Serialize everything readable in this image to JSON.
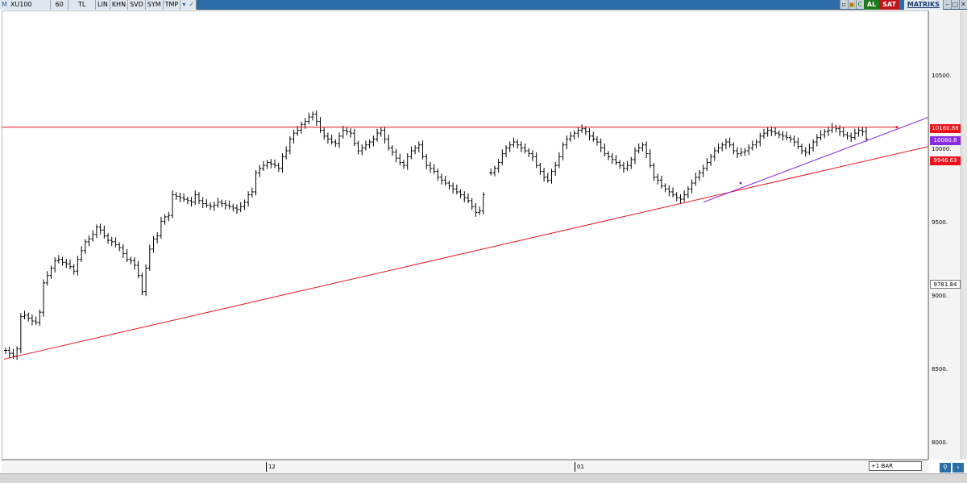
{
  "toolbar": {
    "symbol": "XU100",
    "period": "60",
    "currency": "TL",
    "buttons": [
      "LIN",
      "KHN",
      "SVD",
      "SYM",
      "TMP"
    ],
    "buy_label": "AL",
    "sell_label": "SAT",
    "brand": "MATRIKS",
    "colors": {
      "bar": "#2c6fa8",
      "buy": "#1f7a1f",
      "sell": "#c0151b"
    }
  },
  "scale": {
    "ticks": [
      "10500.",
      "10000.",
      "9500.",
      "9000.",
      "8500.",
      "8000."
    ],
    "resistance_label": "10160.88",
    "current_label": "10080.8",
    "trend_label": "9946.63",
    "cursor_label": "9781.84",
    "colors": {
      "resistance": "#e8131b",
      "current": "#8a2be2",
      "trend": "#e8131b"
    }
  },
  "xaxis": {
    "ticks": [
      "12",
      "01"
    ],
    "bar_shift": "+1 BAR"
  },
  "chart_data": {
    "type": "ohlc",
    "ylim": [
      7950,
      10950
    ],
    "resistance": 10160.88,
    "support_trend_start": 8580,
    "support_trend_end": 10030,
    "minor_trend_start": 9650,
    "minor_trend_end": 10230,
    "last_close": 10080.8,
    "closes": [
      8640,
      8620,
      8600,
      8650,
      8870,
      8880,
      8860,
      8840,
      8830,
      8900,
      9100,
      9150,
      9200,
      9250,
      9260,
      9240,
      9230,
      9210,
      9180,
      9260,
      9320,
      9380,
      9400,
      9430,
      9480,
      9460,
      9420,
      9390,
      9380,
      9360,
      9340,
      9300,
      9260,
      9250,
      9220,
      9150,
      9040,
      9200,
      9330,
      9400,
      9420,
      9520,
      9550,
      9560,
      9700,
      9690,
      9680,
      9670,
      9660,
      9650,
      9700,
      9660,
      9640,
      9630,
      9620,
      9630,
      9650,
      9640,
      9630,
      9620,
      9610,
      9600,
      9620,
      9650,
      9700,
      9720,
      9850,
      9880,
      9900,
      9920,
      9910,
      9900,
      9880,
      9960,
      10000,
      10080,
      10120,
      10140,
      10180,
      10200,
      10230,
      10250,
      10200,
      10140,
      10100,
      10080,
      10060,
      10050,
      10100,
      10140,
      10130,
      10120,
      10050,
      10000,
      10020,
      10040,
      10060,
      10080,
      10120,
      10140,
      10080,
      10020,
      9990,
      9950,
      9920,
      9900,
      9960,
      10000,
      10020,
      10040,
      9960,
      9900,
      9880,
      9860,
      9820,
      9800,
      9780,
      9760,
      9740,
      9720,
      9700,
      9680,
      9660,
      9620,
      9580,
      9590,
      9700,
      null,
      9850,
      9880,
      9920,
      9980,
      10020,
      10040,
      10060,
      10040,
      10020,
      10000,
      9980,
      9960,
      9900,
      9860,
      9820,
      9800,
      9860,
      9900,
      9960,
      10040,
      10080,
      10100,
      10120,
      10140,
      10150,
      10130,
      10100,
      10080,
      10060,
      10020,
      9980,
      9960,
      9940,
      9920,
      9900,
      9880,
      9900,
      9940,
      10000,
      10020,
      10040,
      9980,
      9900,
      9820,
      9800,
      9760,
      9740,
      9720,
      9700,
      9680,
      9670,
      9700,
      9740,
      9780,
      9820,
      9850,
      9880,
      9920,
      9960,
      10000,
      10020,
      10040,
      10060,
      10040,
      10000,
      9980,
      9990,
      10000,
      10020,
      10040,
      10060,
      10100,
      10120,
      10140,
      10130,
      10120,
      10110,
      10100,
      10090,
      10080,
      10060,
      10030,
      10000,
      9990,
      10020,
      10060,
      10090,
      10110,
      10130,
      10140,
      10160,
      10150,
      10130,
      10110,
      10100,
      10090,
      10120,
      10140,
      10130,
      10080
    ]
  }
}
